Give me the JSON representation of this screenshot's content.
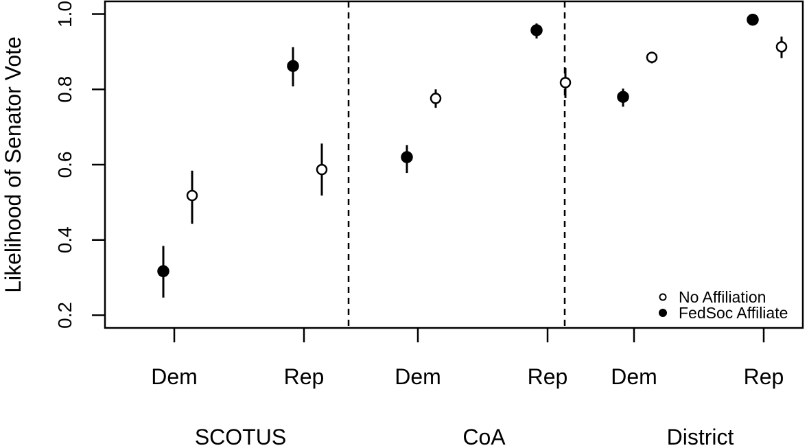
{
  "chart_data": {
    "type": "scatter",
    "ylabel": "Likelihood of Senator Vote",
    "ylim": [
      0.2,
      1.0
    ],
    "yticks": [
      0.2,
      0.4,
      0.6,
      0.8,
      1.0
    ],
    "ytick_labels": [
      "0.2",
      "0.4",
      "0.6",
      "0.8",
      "1.0"
    ],
    "panels": [
      {
        "name": "SCOTUS",
        "categories": [
          "Dem",
          "Rep"
        ]
      },
      {
        "name": "CoA",
        "categories": [
          "Dem",
          "Rep"
        ]
      },
      {
        "name": "District",
        "categories": [
          "Dem",
          "Rep"
        ]
      }
    ],
    "legend": {
      "position": "bottom-right",
      "entries": [
        {
          "label": "No Affiliation",
          "marker": "open-circle"
        },
        {
          "label": "FedSoc Affiliate",
          "marker": "filled-circle"
        }
      ]
    },
    "series": [
      {
        "name": "FedSoc Affiliate",
        "marker": "filled-circle",
        "points": [
          {
            "panel": "SCOTUS",
            "party": "Dem",
            "y": 0.317,
            "lo": 0.247,
            "hi": 0.384
          },
          {
            "panel": "SCOTUS",
            "party": "Rep",
            "y": 0.862,
            "lo": 0.808,
            "hi": 0.912
          },
          {
            "panel": "CoA",
            "party": "Dem",
            "y": 0.62,
            "lo": 0.578,
            "hi": 0.652
          },
          {
            "panel": "CoA",
            "party": "Rep",
            "y": 0.957,
            "lo": 0.935,
            "hi": 0.975
          },
          {
            "panel": "District",
            "party": "Dem",
            "y": 0.78,
            "lo": 0.754,
            "hi": 0.802
          },
          {
            "panel": "District",
            "party": "Rep",
            "y": 0.985,
            "lo": 0.978,
            "hi": 0.992
          }
        ]
      },
      {
        "name": "No Affiliation",
        "marker": "open-circle",
        "points": [
          {
            "panel": "SCOTUS",
            "party": "Dem",
            "y": 0.518,
            "lo": 0.443,
            "hi": 0.584
          },
          {
            "panel": "SCOTUS",
            "party": "Rep",
            "y": 0.587,
            "lo": 0.518,
            "hi": 0.656
          },
          {
            "panel": "CoA",
            "party": "Dem",
            "y": 0.776,
            "lo": 0.751,
            "hi": 0.8
          },
          {
            "panel": "CoA",
            "party": "Rep",
            "y": 0.818,
            "lo": 0.777,
            "hi": 0.857
          },
          {
            "panel": "District",
            "party": "Dem",
            "y": 0.885,
            "lo": 0.869,
            "hi": 0.9
          },
          {
            "panel": "District",
            "party": "Rep",
            "y": 0.913,
            "lo": 0.883,
            "hi": 0.94
          }
        ]
      }
    ],
    "grid": false
  }
}
